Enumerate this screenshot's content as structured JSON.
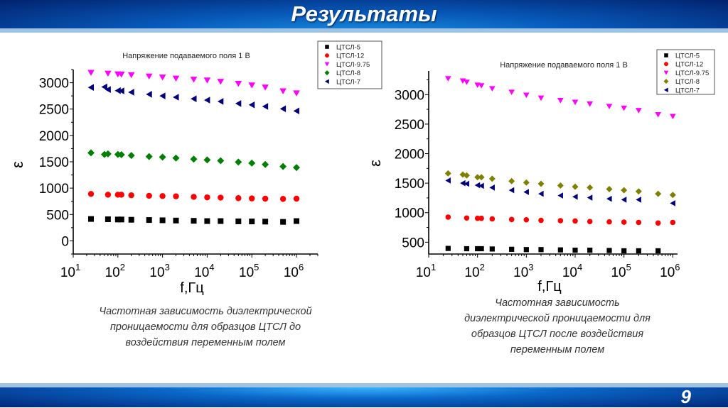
{
  "slide": {
    "title": "Результаты",
    "page_number": "9"
  },
  "captions": [
    [
      "Частотная зависимость диэлектрической",
      "проницаемости для образцов ЦТСЛ до",
      "воздействия переменным полем"
    ],
    [
      "Частотная зависимость",
      "диэлектрической проницаемости для",
      "образцов ЦТСЛ после воздействия",
      "переменным полем"
    ]
  ],
  "chart_data": [
    {
      "type": "scatter",
      "title": "Напряжение подаваемого поля 1 В",
      "xlabel": "f,Гц",
      "ylabel": "ε",
      "xscale": "log",
      "xlim": [
        10,
        3000000
      ],
      "ylim": [
        -250,
        3250
      ],
      "xticks": [
        1,
        2,
        3,
        4,
        5,
        6
      ],
      "yticks": [
        0,
        500,
        1000,
        1500,
        2000,
        2500,
        3000
      ],
      "grid": false,
      "legend_position": "top-right",
      "series": [
        {
          "name": "ЦТСЛ-5",
          "marker": "square",
          "color": "#000000",
          "x": [
            25,
            60,
            100,
            120,
            200,
            500,
            1000,
            2000,
            5000,
            10000,
            20000,
            50000,
            100000,
            200000,
            500000,
            1000000
          ],
          "y": [
            415,
            410,
            405,
            405,
            400,
            395,
            390,
            385,
            380,
            375,
            375,
            370,
            368,
            365,
            360,
            375
          ]
        },
        {
          "name": "ЦТСЛ-12",
          "marker": "circle",
          "color": "#ff0000",
          "x": [
            25,
            60,
            100,
            120,
            200,
            500,
            1000,
            2000,
            5000,
            10000,
            20000,
            50000,
            100000,
            200000,
            500000,
            1000000
          ],
          "y": [
            890,
            875,
            875,
            875,
            865,
            855,
            850,
            845,
            835,
            825,
            820,
            810,
            805,
            800,
            795,
            800
          ]
        },
        {
          "name": "ЦТСЛ-9.75",
          "marker": "triangle-down",
          "color": "#ff00ff",
          "x": [
            25,
            60,
            100,
            120,
            200,
            500,
            1000,
            2000,
            5000,
            10000,
            20000,
            50000,
            100000,
            200000,
            500000,
            1000000
          ],
          "y": [
            3190,
            3175,
            3160,
            3155,
            3145,
            3120,
            3100,
            3080,
            3060,
            3045,
            3020,
            2980,
            2950,
            2910,
            2840,
            2800
          ]
        },
        {
          "name": "ЦТСЛ-8",
          "marker": "diamond",
          "color": "#008000",
          "x": [
            25,
            50,
            60,
            100,
            120,
            200,
            500,
            1000,
            2000,
            5000,
            10000,
            20000,
            50000,
            100000,
            200000,
            500000,
            1000000
          ],
          "y": [
            1670,
            1640,
            1650,
            1640,
            1635,
            1620,
            1600,
            1590,
            1570,
            1550,
            1535,
            1520,
            1495,
            1475,
            1450,
            1410,
            1390
          ]
        },
        {
          "name": "ЦТСЛ-7",
          "marker": "triangle-left",
          "color": "#000080",
          "x": [
            25,
            50,
            60,
            100,
            120,
            200,
            500,
            1000,
            2000,
            5000,
            10000,
            20000,
            50000,
            100000,
            200000,
            500000,
            1000000
          ],
          "y": [
            2910,
            2920,
            2870,
            2850,
            2845,
            2820,
            2780,
            2750,
            2725,
            2695,
            2670,
            2645,
            2605,
            2580,
            2550,
            2505,
            2465
          ]
        }
      ]
    },
    {
      "type": "scatter",
      "title": "Напряжение подаваемого поля 1 В",
      "xlabel": "f,Гц",
      "ylabel": "ε",
      "xscale": "log",
      "xlim": [
        10,
        1250000
      ],
      "ylim": [
        300,
        3400
      ],
      "xticks": [
        1,
        2,
        3,
        4,
        5,
        6
      ],
      "yticks": [
        500,
        1000,
        1500,
        2000,
        2500,
        3000
      ],
      "grid": false,
      "legend_position": "top-right",
      "series": [
        {
          "name": "ЦТСЛ-5",
          "marker": "square",
          "color": "#000000",
          "x": [
            25,
            60,
            100,
            120,
            200,
            500,
            1000,
            2000,
            5000,
            10000,
            20000,
            50000,
            100000,
            200000,
            500000
          ],
          "y": [
            395,
            390,
            390,
            390,
            385,
            380,
            375,
            375,
            370,
            365,
            365,
            360,
            355,
            355,
            355
          ]
        },
        {
          "name": "ЦТСЛ-12",
          "marker": "circle",
          "color": "#ff0000",
          "x": [
            25,
            60,
            100,
            120,
            200,
            500,
            1000,
            2000,
            5000,
            10000,
            20000,
            50000,
            100000,
            200000,
            500000,
            1000000
          ],
          "y": [
            925,
            910,
            905,
            905,
            895,
            885,
            880,
            870,
            865,
            860,
            850,
            845,
            840,
            835,
            825,
            835
          ]
        },
        {
          "name": "ЦТСЛ-9.75",
          "marker": "triangle-down",
          "color": "#ff00ff",
          "x": [
            25,
            50,
            60,
            100,
            120,
            200,
            500,
            1000,
            2000,
            5000,
            10000,
            20000,
            50000,
            100000,
            200000,
            500000,
            1000000
          ],
          "y": [
            3270,
            3230,
            3210,
            3160,
            3150,
            3100,
            3040,
            2990,
            2940,
            2900,
            2870,
            2840,
            2800,
            2770,
            2730,
            2660,
            2630
          ]
        },
        {
          "name": "ЦТСЛ-8",
          "marker": "diamond",
          "color": "#808000",
          "x": [
            25,
            50,
            60,
            100,
            120,
            200,
            500,
            1000,
            2000,
            5000,
            10000,
            20000,
            50000,
            100000,
            200000,
            500000,
            1000000
          ],
          "y": [
            1665,
            1645,
            1630,
            1600,
            1600,
            1575,
            1535,
            1510,
            1490,
            1460,
            1440,
            1425,
            1400,
            1380,
            1360,
            1320,
            1300
          ]
        },
        {
          "name": "ЦТСЛ-7",
          "marker": "triangle-left",
          "color": "#000080",
          "x": [
            25,
            50,
            60,
            100,
            120,
            200,
            500,
            1000,
            2000,
            5000,
            10000,
            20000,
            50000,
            100000,
            200000,
            1000000
          ],
          "y": [
            1545,
            1500,
            1490,
            1465,
            1455,
            1425,
            1380,
            1350,
            1320,
            1290,
            1270,
            1255,
            1235,
            1220,
            1220,
            1160
          ]
        }
      ]
    }
  ]
}
